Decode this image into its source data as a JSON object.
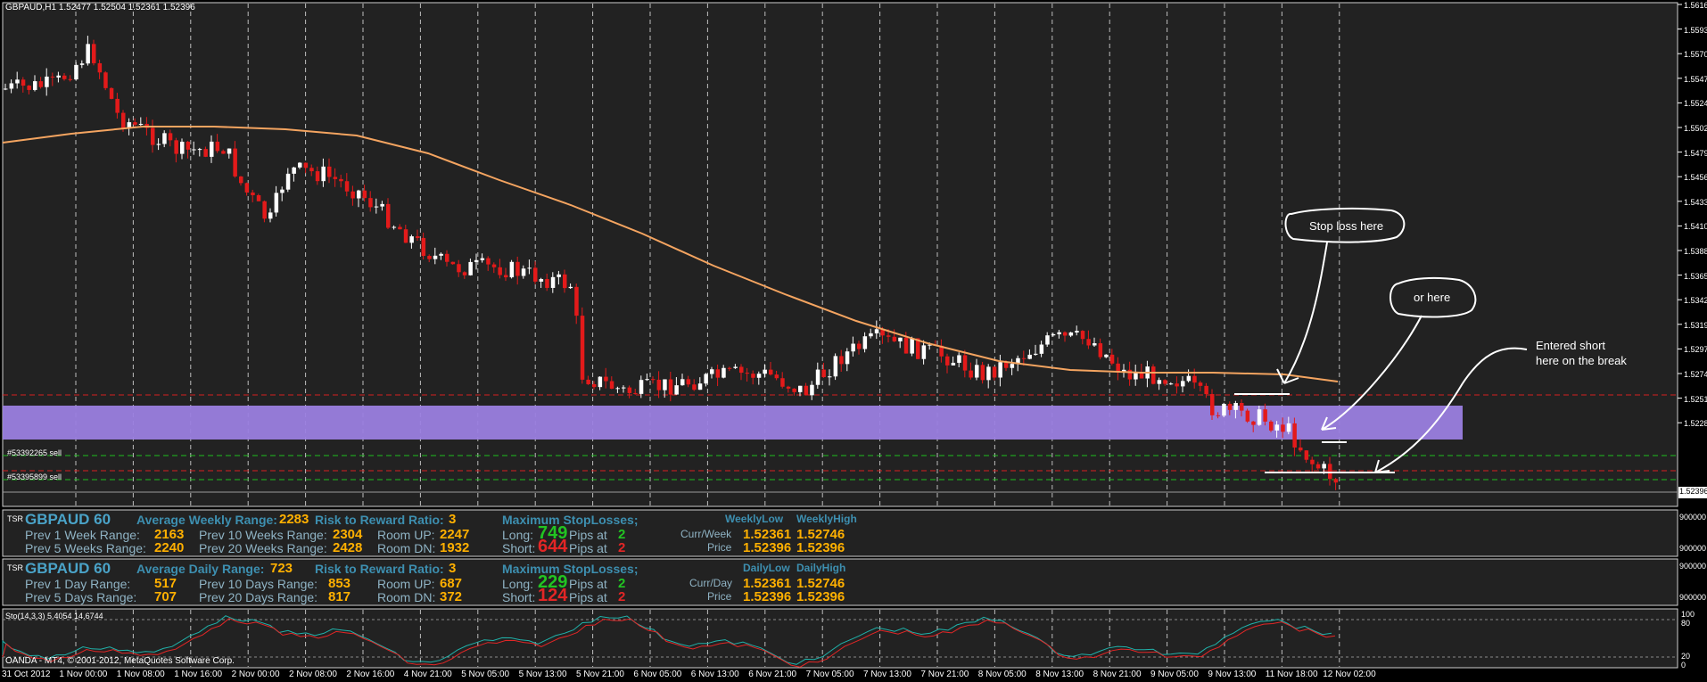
{
  "header": {
    "symbol_info": "GBPAUD,H1  1.52477 1.52504 1.52361 1.52396"
  },
  "price_axis": [
    "1.56160",
    "1.55930",
    "1.55700",
    "1.55475",
    "1.55245",
    "1.55020",
    "1.54790",
    "1.54560",
    "1.54335",
    "1.54105",
    "1.53880",
    "1.53650",
    "1.53425",
    "1.53195",
    "1.52970",
    "1.52740",
    "1.52510",
    "1.52285"
  ],
  "current_price": "1.52396",
  "time_axis": [
    "31 Oct 2012",
    "1 Nov 00:00",
    "1 Nov 08:00",
    "1 Nov 16:00",
    "2 Nov 00:00",
    "2 Nov 08:00",
    "2 Nov 16:00",
    "4 Nov 21:00",
    "5 Nov 05:00",
    "5 Nov 13:00",
    "5 Nov 21:00",
    "6 Nov 05:00",
    "6 Nov 13:00",
    "6 Nov 21:00",
    "7 Nov 05:00",
    "7 Nov 13:00",
    "7 Nov 21:00",
    "8 Nov 05:00",
    "8 Nov 13:00",
    "8 Nov 21:00",
    "9 Nov 05:00",
    "9 Nov 13:00",
    "11 Nov 18:00",
    "12 Nov 02:00"
  ],
  "orders": {
    "order1": "#53392265 sell",
    "order2": "#53395899 sell"
  },
  "annotations": {
    "stop_loss": "Stop loss here",
    "or_here": "or here",
    "entered_1": "Entered short",
    "entered_2": "here on the break"
  },
  "weekly": {
    "tsr": "TSR",
    "title": "GBPAUD 60",
    "avg_label": "Average Weekly Range:",
    "avg_value": "2283",
    "rr_label": "Risk to Reward Ratio:",
    "rr_value": "3",
    "max_label": "Maximum StopLosses;",
    "low_label": "WeeklyLow",
    "high_label": "WeeklyHigh",
    "prev1_label": "Prev 1 Week Range:",
    "prev1_value": "2163",
    "prev10_label": "Prev 10 Weeks Range:",
    "prev10_value": "2304",
    "roomup_label": "Room UP:",
    "roomup_value": "2247",
    "long_label": "Long:",
    "long_value": "749",
    "pipsat": "Pips at",
    "long_at": "2",
    "cw_label": "Curr/Week",
    "cw_low": "1.52361",
    "cw_high": "1.52746",
    "prev5_label": "Prev 5 Weeks Range:",
    "prev5_value": "2240",
    "prev20_label": "Prev 20 Weeks Range:",
    "prev20_value": "2428",
    "roomdn_label": "Room DN:",
    "roomdn_value": "1932",
    "short_label": "Short:",
    "short_value": "644",
    "short_at": "2",
    "price_label": "Price",
    "price_low": "1.52396",
    "price_high": "1.52396",
    "axis_val": "900000"
  },
  "daily": {
    "tsr": "TSR",
    "title": "GBPAUD 60",
    "avg_label": "Average Daily Range:",
    "avg_value": "723",
    "rr_label": "Risk to Reward Ratio:",
    "rr_value": "3",
    "max_label": "Maximum StopLosses;",
    "low_label": "DailyLow",
    "high_label": "DailyHigh",
    "prev1_label": "Prev 1 Day Range:",
    "prev1_value": "517",
    "prev10_label": "Prev 10 Days Range:",
    "prev10_value": "853",
    "roomup_label": "Room UP:",
    "roomup_value": "687",
    "long_label": "Long:",
    "long_value": "229",
    "pipsat": "Pips at",
    "long_at": "2",
    "cd_label": "Curr/Day",
    "cd_low": "1.52361",
    "cd_high": "1.52746",
    "prev5_label": "Prev 5 Days Range:",
    "prev5_value": "707",
    "prev20_label": "Prev 20 Days Range:",
    "prev20_value": "817",
    "roomdn_label": "Room DN:",
    "roomdn_value": "372",
    "short_label": "Short:",
    "short_value": "124",
    "short_at": "2",
    "price_label": "Price",
    "price_low": "1.52396",
    "price_high": "1.52396",
    "axis_val": "900000"
  },
  "stoch": {
    "label": "Sto(14,3,3) 5.4054 14.6744",
    "axis": [
      "100",
      "80",
      "20",
      "0"
    ],
    "copyright": "OANDA - MT4, © 2001-2012, MetaQuotes Software Corp."
  },
  "colors": {
    "bull": "#ffffff",
    "bear": "#e31a1a",
    "ma": "#f4a460",
    "zone": "#9b7fe0",
    "grid": "#8a8a8a"
  }
}
